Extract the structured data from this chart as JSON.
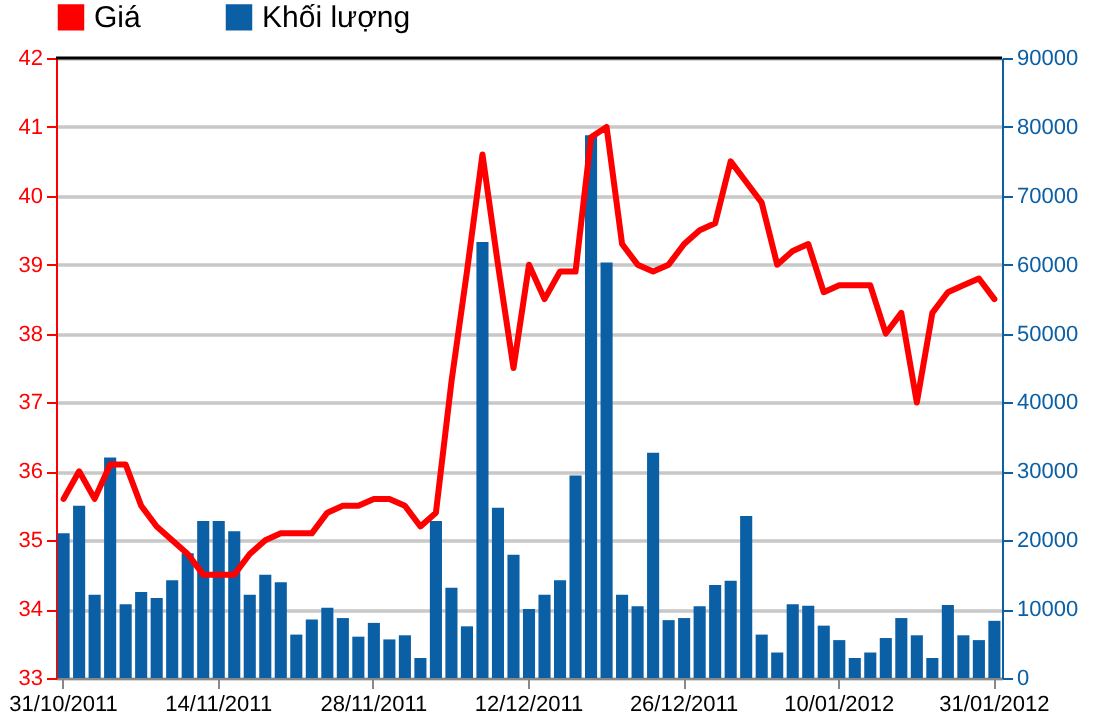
{
  "chart_data": {
    "type": "bar",
    "categories": [
      "31/10/2011",
      null,
      null,
      null,
      null,
      null,
      null,
      null,
      null,
      null,
      "14/11/2011",
      null,
      null,
      null,
      null,
      null,
      null,
      null,
      null,
      null,
      "28/11/2011",
      null,
      null,
      null,
      null,
      null,
      null,
      null,
      null,
      null,
      "12/12/2011",
      null,
      null,
      null,
      null,
      null,
      null,
      null,
      null,
      null,
      "26/12/2011",
      null,
      null,
      null,
      null,
      null,
      null,
      null,
      null,
      null,
      "10/01/2012",
      null,
      null,
      null,
      null,
      null,
      null,
      null,
      null,
      null,
      "31/01/2012"
    ],
    "series": [
      {
        "name": "Khối lượng",
        "axis": "y2",
        "color": "#0b5fa5",
        "values": [
          21000,
          25000,
          12100,
          32000,
          10700,
          12500,
          11600,
          14200,
          18100,
          22800,
          22800,
          21300,
          12100,
          15000,
          13900,
          6300,
          8500,
          10200,
          8700,
          6000,
          8000,
          5600,
          6200,
          2900,
          22800,
          13100,
          7500,
          63300,
          24700,
          17900,
          10000,
          12100,
          14200,
          29400,
          78800,
          60300,
          12100,
          10400,
          32700,
          8400,
          8700,
          10400,
          13500,
          14100,
          23500,
          6300,
          3700,
          10700,
          10500,
          7600,
          5500,
          2900,
          3700,
          5800,
          8700,
          6200,
          2900,
          10600,
          6200,
          5500,
          8300
        ]
      },
      {
        "name": "Giá",
        "type": "line",
        "color": "#ff0000",
        "values": [
          35.6,
          36.0,
          35.6,
          36.1,
          36.1,
          35.5,
          35.2,
          35.0,
          34.8,
          34.5,
          34.5,
          34.5,
          34.8,
          35.0,
          35.1,
          35.1,
          35.1,
          35.4,
          35.5,
          35.5,
          35.6,
          35.6,
          35.5,
          35.2,
          35.4,
          37.3,
          38.9,
          40.6,
          39.0,
          37.5,
          39.0,
          38.5,
          38.9,
          38.9,
          40.85,
          41.0,
          39.3,
          39.0,
          38.9,
          39.0,
          39.3,
          39.5,
          39.6,
          40.5,
          40.2,
          39.9,
          39.0,
          39.2,
          39.3,
          38.6,
          38.7,
          38.7,
          38.7,
          38.0,
          38.3,
          37.0,
          38.3,
          38.6,
          38.7,
          38.8,
          38.5
        ]
      }
    ],
    "ylim": [
      33,
      42
    ],
    "yticks": [
      33,
      34,
      35,
      36,
      37,
      38,
      39,
      40,
      41,
      42
    ],
    "y2lim": [
      0,
      90000
    ],
    "y2ticks": [
      0,
      10000,
      20000,
      30000,
      40000,
      50000,
      60000,
      70000,
      80000,
      90000
    ],
    "grid": "y",
    "legend": "top left"
  }
}
